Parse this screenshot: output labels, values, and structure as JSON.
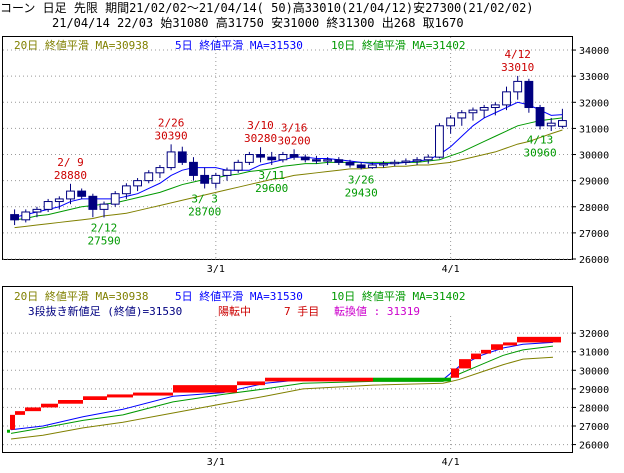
{
  "header": {
    "line1": "コーン 日足 先限 期間21/02/02～21/04/14( 50)高33010(21/04/12)安27300(21/02/02)",
    "line2": "21/04/14 22/03 始31080 高31750 安31000 終31300 出268 取1670"
  },
  "colors": {
    "ma20": "#808000",
    "ma5": "#0000ff",
    "ma10": "#009900",
    "candle_up_fill": "#ffffff",
    "candle_down_fill": "#000080",
    "candle_line": "#000080",
    "brick_up": "#ff0000",
    "brick_down": "#00aa00",
    "high_label": "#cc0000",
    "low_label": "#009900",
    "grid": "#999999",
    "note": "#cc00cc"
  },
  "upper": {
    "legend": {
      "ma20": "20日 終値平滑 MA=30938",
      "ma5": "5日 終値平滑 MA=31530",
      "ma10": "10日 終値平滑 MA=31402"
    }
  },
  "lower": {
    "legend": {
      "ma20": "20日 終値平滑 MA=30938",
      "ma5": "5日 終値平滑 MA=31530",
      "ma10": "10日 終値平滑 MA=31402"
    },
    "info": {
      "base": "3段抜き新値足 (終値)=31530",
      "status": "陽転中",
      "count": "7 手目",
      "convert": "転換値 : 31319"
    }
  },
  "chart_data": [
    {
      "type": "candlestick",
      "title": "コーン 日足 先限",
      "ylim": [
        26000,
        34500
      ],
      "y_ticks": [
        26000,
        27000,
        28000,
        29000,
        30000,
        31000,
        32000,
        33000,
        34000
      ],
      "x_ticks": [
        "3/1",
        "4/1"
      ],
      "x_tick_index": [
        18,
        39
      ],
      "candles": [
        {
          "o": 27700,
          "h": 27900,
          "l": 27300,
          "c": 27500
        },
        {
          "o": 27500,
          "h": 27900,
          "l": 27400,
          "c": 27800
        },
        {
          "o": 27800,
          "h": 28000,
          "l": 27600,
          "c": 27900
        },
        {
          "o": 27900,
          "h": 28300,
          "l": 27800,
          "c": 28200
        },
        {
          "o": 28200,
          "h": 28400,
          "l": 27900,
          "c": 28300
        },
        {
          "o": 28300,
          "h": 28880,
          "l": 28100,
          "c": 28600
        },
        {
          "o": 28600,
          "h": 28700,
          "l": 28300,
          "c": 28400
        },
        {
          "o": 28400,
          "h": 28500,
          "l": 27600,
          "c": 27900
        },
        {
          "o": 27900,
          "h": 28200,
          "l": 27590,
          "c": 28100
        },
        {
          "o": 28100,
          "h": 28600,
          "l": 28000,
          "c": 28500
        },
        {
          "o": 28500,
          "h": 28900,
          "l": 28300,
          "c": 28800
        },
        {
          "o": 28800,
          "h": 29100,
          "l": 28600,
          "c": 29000
        },
        {
          "o": 29000,
          "h": 29400,
          "l": 28900,
          "c": 29300
        },
        {
          "o": 29300,
          "h": 29600,
          "l": 29100,
          "c": 29500
        },
        {
          "o": 29500,
          "h": 30390,
          "l": 29400,
          "c": 30100
        },
        {
          "o": 30100,
          "h": 30300,
          "l": 29600,
          "c": 29700
        },
        {
          "o": 29700,
          "h": 29900,
          "l": 29000,
          "c": 29200
        },
        {
          "o": 29200,
          "h": 29500,
          "l": 28700,
          "c": 28900
        },
        {
          "o": 28900,
          "h": 29300,
          "l": 28700,
          "c": 29200
        },
        {
          "o": 29200,
          "h": 29500,
          "l": 29000,
          "c": 29400
        },
        {
          "o": 29400,
          "h": 29800,
          "l": 29300,
          "c": 29700
        },
        {
          "o": 29700,
          "h": 30100,
          "l": 29600,
          "c": 30000
        },
        {
          "o": 30000,
          "h": 30280,
          "l": 29700,
          "c": 29900
        },
        {
          "o": 29900,
          "h": 30100,
          "l": 29600,
          "c": 29800
        },
        {
          "o": 29800,
          "h": 30100,
          "l": 29700,
          "c": 30000
        },
        {
          "o": 30000,
          "h": 30200,
          "l": 29800,
          "c": 29900
        },
        {
          "o": 29900,
          "h": 30000,
          "l": 29700,
          "c": 29800
        },
        {
          "o": 29800,
          "h": 29950,
          "l": 29650,
          "c": 29750
        },
        {
          "o": 29750,
          "h": 29900,
          "l": 29600,
          "c": 29800
        },
        {
          "o": 29800,
          "h": 29900,
          "l": 29600,
          "c": 29700
        },
        {
          "o": 29700,
          "h": 29800,
          "l": 29500,
          "c": 29600
        },
        {
          "o": 29600,
          "h": 29700,
          "l": 29430,
          "c": 29500
        },
        {
          "o": 29500,
          "h": 29700,
          "l": 29450,
          "c": 29600
        },
        {
          "o": 29600,
          "h": 29750,
          "l": 29500,
          "c": 29650
        },
        {
          "o": 29650,
          "h": 29800,
          "l": 29550,
          "c": 29700
        },
        {
          "o": 29700,
          "h": 29850,
          "l": 29600,
          "c": 29750
        },
        {
          "o": 29750,
          "h": 29900,
          "l": 29600,
          "c": 29800
        },
        {
          "o": 29800,
          "h": 30000,
          "l": 29650,
          "c": 29900
        },
        {
          "o": 29900,
          "h": 31200,
          "l": 29850,
          "c": 31100
        },
        {
          "o": 31100,
          "h": 31500,
          "l": 30800,
          "c": 31400
        },
        {
          "o": 31400,
          "h": 31700,
          "l": 31100,
          "c": 31600
        },
        {
          "o": 31600,
          "h": 31800,
          "l": 31300,
          "c": 31700
        },
        {
          "o": 31700,
          "h": 31900,
          "l": 31400,
          "c": 31800
        },
        {
          "o": 31800,
          "h": 32000,
          "l": 31500,
          "c": 31900
        },
        {
          "o": 31900,
          "h": 32600,
          "l": 31700,
          "c": 32400
        },
        {
          "o": 32400,
          "h": 33010,
          "l": 32100,
          "c": 32800
        },
        {
          "o": 32800,
          "h": 32900,
          "l": 31600,
          "c": 31800
        },
        {
          "o": 31800,
          "h": 31900,
          "l": 30960,
          "c": 31100
        },
        {
          "o": 31100,
          "h": 31400,
          "l": 30900,
          "c": 31200
        },
        {
          "o": 31080,
          "h": 31750,
          "l": 31000,
          "c": 31300
        }
      ],
      "ma5": [
        27600,
        27700,
        27800,
        27900,
        28000,
        28200,
        28300,
        28300,
        28300,
        28300,
        28400,
        28500,
        28700,
        28900,
        29200,
        29400,
        29500,
        29500,
        29500,
        29400,
        29400,
        29400,
        29600,
        29700,
        29800,
        29900,
        29900,
        29850,
        29850,
        29800,
        29750,
        29700,
        29650,
        29650,
        29650,
        29700,
        29750,
        29800,
        30000,
        30300,
        30700,
        31100,
        31400,
        31600,
        31800,
        32000,
        31900,
        31700,
        31500,
        31530
      ],
      "ma10": [
        27500,
        27550,
        27650,
        27700,
        27800,
        27900,
        28000,
        28050,
        28100,
        28150,
        28250,
        28350,
        28450,
        28550,
        28700,
        28850,
        28950,
        29050,
        29100,
        29200,
        29250,
        29350,
        29400,
        29450,
        29550,
        29600,
        29650,
        29650,
        29700,
        29700,
        29700,
        29700,
        29700,
        29700,
        29700,
        29700,
        29700,
        29750,
        29800,
        29950,
        30100,
        30300,
        30500,
        30700,
        30900,
        31100,
        31200,
        31300,
        31350,
        31402
      ],
      "ma20": [
        27200,
        27250,
        27300,
        27350,
        27400,
        27450,
        27500,
        27550,
        27650,
        27700,
        27750,
        27850,
        27950,
        28050,
        28150,
        28250,
        28350,
        28450,
        28550,
        28650,
        28750,
        28850,
        28950,
        29050,
        29100,
        29200,
        29250,
        29300,
        29350,
        29400,
        29450,
        29450,
        29500,
        29500,
        29550,
        29550,
        29600,
        29600,
        29650,
        29700,
        29800,
        29900,
        30000,
        30100,
        30250,
        30400,
        30500,
        30650,
        30800,
        30938
      ],
      "annotations": [
        {
          "i": 5,
          "label": "2/ 9",
          "value": "28880",
          "kind": "high"
        },
        {
          "i": 14,
          "label": "2/26",
          "value": "30390",
          "kind": "high"
        },
        {
          "i": 22,
          "label": "3/10",
          "value": "30280",
          "kind": "high"
        },
        {
          "i": 25,
          "label": "3/16",
          "value": "30200",
          "kind": "high"
        },
        {
          "i": 45,
          "label": "4/12",
          "value": "33010",
          "kind": "high"
        },
        {
          "i": 8,
          "label": "2/12",
          "value": "27590",
          "kind": "low"
        },
        {
          "i": 17,
          "label": "3/ 3",
          "value": "28700",
          "kind": "low"
        },
        {
          "i": 23,
          "label": "3/11",
          "value": "29600",
          "kind": "low"
        },
        {
          "i": 31,
          "label": "3/26",
          "value": "29430",
          "kind": "low"
        },
        {
          "i": 47,
          "label": "4/13",
          "value": "30960",
          "kind": "low"
        }
      ]
    },
    {
      "type": "three-line-break",
      "title": "3段抜き新値足 (終値)",
      "ylim": [
        25600,
        32600
      ],
      "y_ticks": [
        26000,
        27000,
        28000,
        29000,
        30000,
        31000,
        32000
      ],
      "x_ticks": [
        "3/1",
        "4/1"
      ],
      "bricks": [
        {
          "x0": 4,
          "x1": 7,
          "lo": 26700,
          "hi": 26800,
          "dir": "down"
        },
        {
          "x0": 7,
          "x1": 12,
          "lo": 26800,
          "hi": 27600,
          "dir": "up"
        },
        {
          "x0": 12,
          "x1": 22,
          "lo": 27600,
          "hi": 27800,
          "dir": "up"
        },
        {
          "x0": 22,
          "x1": 38,
          "lo": 27800,
          "hi": 28000,
          "dir": "up"
        },
        {
          "x0": 38,
          "x1": 55,
          "lo": 28000,
          "hi": 28200,
          "dir": "up"
        },
        {
          "x0": 55,
          "x1": 80,
          "lo": 28200,
          "hi": 28400,
          "dir": "up"
        },
        {
          "x0": 80,
          "x1": 104,
          "lo": 28400,
          "hi": 28600,
          "dir": "up"
        },
        {
          "x0": 104,
          "x1": 130,
          "lo": 28600,
          "hi": 28700,
          "dir": "up"
        },
        {
          "x0": 130,
          "x1": 170,
          "lo": 28700,
          "hi": 28800,
          "dir": "up"
        },
        {
          "x0": 170,
          "x1": 234,
          "lo": 28800,
          "hi": 29200,
          "dir": "up"
        },
        {
          "x0": 234,
          "x1": 262,
          "lo": 29200,
          "hi": 29400,
          "dir": "up"
        },
        {
          "x0": 262,
          "x1": 370,
          "lo": 29400,
          "hi": 29600,
          "dir": "up"
        },
        {
          "x0": 370,
          "x1": 448,
          "lo": 29400,
          "hi": 29600,
          "dir": "down"
        },
        {
          "x0": 448,
          "x1": 456,
          "lo": 29600,
          "hi": 30100,
          "dir": "up"
        },
        {
          "x0": 456,
          "x1": 468,
          "lo": 30100,
          "hi": 30600,
          "dir": "up"
        },
        {
          "x0": 468,
          "x1": 478,
          "lo": 30600,
          "hi": 30900,
          "dir": "up"
        },
        {
          "x0": 478,
          "x1": 488,
          "lo": 30900,
          "hi": 31100,
          "dir": "up"
        },
        {
          "x0": 488,
          "x1": 500,
          "lo": 31100,
          "hi": 31400,
          "dir": "up"
        },
        {
          "x0": 500,
          "x1": 514,
          "lo": 31400,
          "hi": 31500,
          "dir": "up"
        },
        {
          "x0": 514,
          "x1": 558,
          "lo": 31500,
          "hi": 31800,
          "dir": "up"
        }
      ],
      "ma5_pts": [
        [
          8,
          26800
        ],
        [
          40,
          27000
        ],
        [
          80,
          27500
        ],
        [
          120,
          27900
        ],
        [
          170,
          28600
        ],
        [
          220,
          28800
        ],
        [
          262,
          29300
        ],
        [
          300,
          29500
        ],
        [
          370,
          29500
        ],
        [
          440,
          29500
        ],
        [
          456,
          30200
        ],
        [
          478,
          30800
        ],
        [
          500,
          31200
        ],
        [
          520,
          31400
        ],
        [
          550,
          31500
        ]
      ],
      "ma10_pts": [
        [
          8,
          26600
        ],
        [
          40,
          26900
        ],
        [
          80,
          27300
        ],
        [
          120,
          27600
        ],
        [
          170,
          28300
        ],
        [
          220,
          28700
        ],
        [
          262,
          29000
        ],
        [
          300,
          29300
        ],
        [
          370,
          29400
        ],
        [
          440,
          29400
        ],
        [
          456,
          29800
        ],
        [
          478,
          30300
        ],
        [
          500,
          30800
        ],
        [
          520,
          31100
        ],
        [
          550,
          31300
        ]
      ],
      "ma20_pts": [
        [
          8,
          26300
        ],
        [
          40,
          26500
        ],
        [
          80,
          26900
        ],
        [
          120,
          27200
        ],
        [
          170,
          27700
        ],
        [
          220,
          28200
        ],
        [
          262,
          28600
        ],
        [
          300,
          29000
        ],
        [
          370,
          29200
        ],
        [
          440,
          29300
        ],
        [
          456,
          29500
        ],
        [
          478,
          29900
        ],
        [
          500,
          30300
        ],
        [
          520,
          30600
        ],
        [
          550,
          30700
        ]
      ]
    }
  ]
}
